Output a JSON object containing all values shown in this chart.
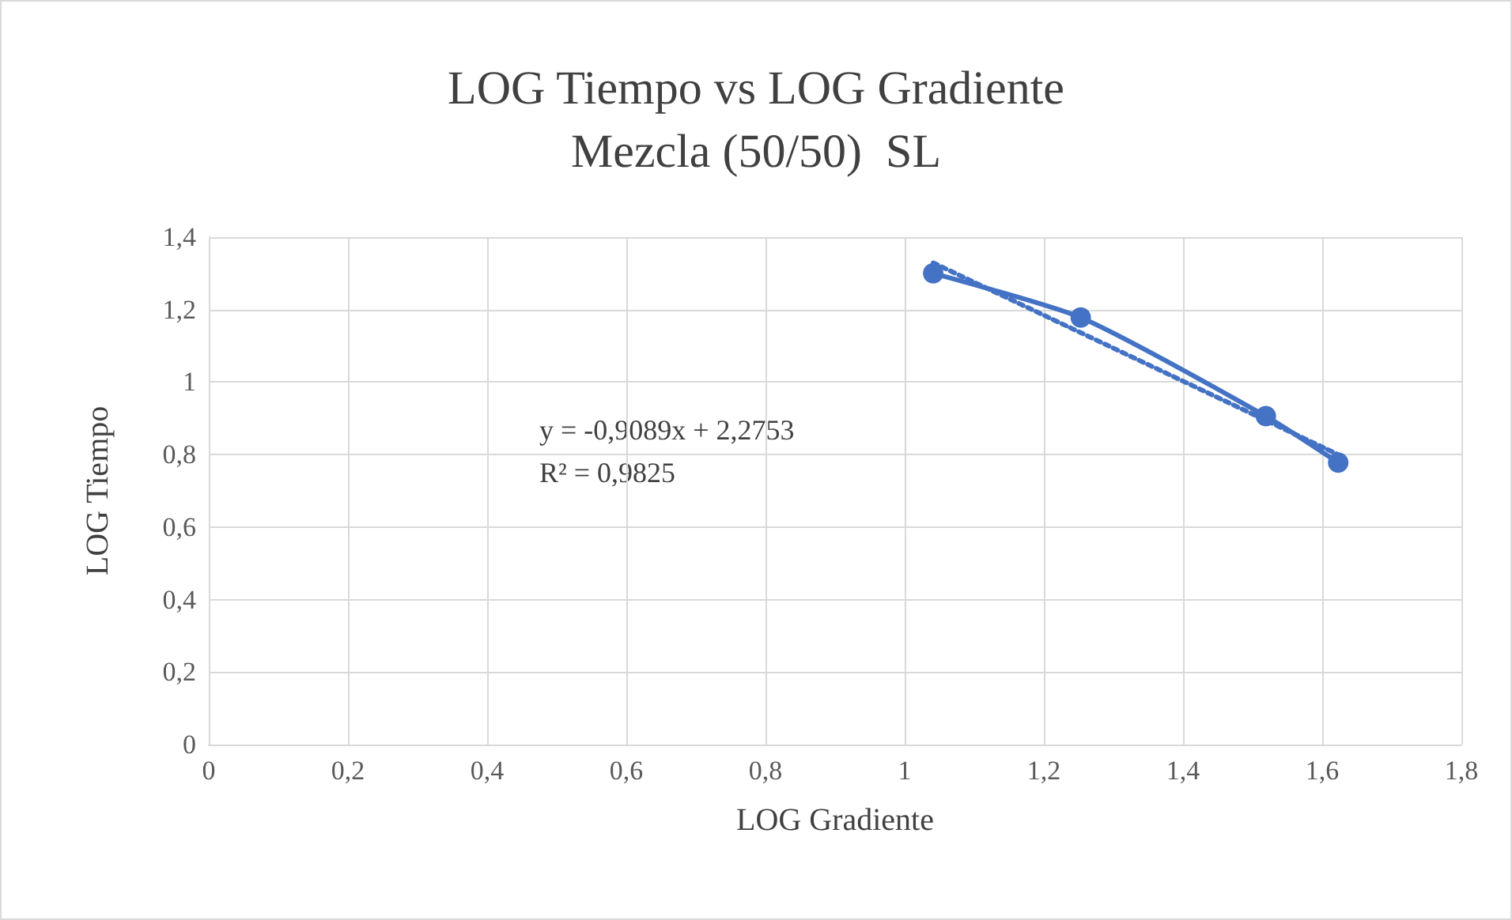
{
  "chart_data": {
    "type": "line",
    "title": "LOG Tiempo vs LOG Gradiente",
    "subtitle": "Mezcla (50/50)  SL",
    "xlabel": "LOG Gradiente",
    "ylabel": "LOG Tiempo",
    "annotations": [
      "y = -0,9089x + 2,2753",
      "R² = 0,9825"
    ],
    "series": [
      {
        "color": "#4472c4",
        "marker": "circle",
        "line_style": "solid",
        "x": [
          1.041,
          1.253,
          1.519,
          1.623
        ],
        "values": [
          1.3,
          1.178,
          0.906,
          0.778
        ]
      },
      {
        "color": "#4472c4",
        "marker": "none",
        "line_style": "dotted",
        "x": [
          1.041,
          1.623
        ],
        "values": [
          1.329,
          0.8
        ]
      }
    ],
    "xlim": [
      0,
      1.8
    ],
    "xticks": [
      0,
      {
        "value": 0.2,
        "label": "0,2"
      },
      {
        "value": 0.4,
        "label": "0,4"
      },
      {
        "value": 0.6,
        "label": "0,6"
      },
      {
        "value": 0.8,
        "label": "0,8"
      },
      1,
      {
        "value": 1.2,
        "label": "1,2"
      },
      {
        "value": 1.4,
        "label": "1,4"
      },
      {
        "value": 1.6,
        "label": "1,6"
      },
      {
        "value": 1.8,
        "label": "1,8"
      }
    ],
    "ylim": [
      0,
      1.4
    ],
    "yticks": [
      0,
      {
        "value": 0.2,
        "label": "0,2"
      },
      {
        "value": 0.4,
        "label": "0,4"
      },
      {
        "value": 0.6,
        "label": "0,6"
      },
      {
        "value": 0.8,
        "label": "0,8"
      },
      1,
      {
        "value": 1.2,
        "label": "1,2"
      },
      {
        "value": 1.4,
        "label": "1,4"
      }
    ],
    "grid": true
  }
}
